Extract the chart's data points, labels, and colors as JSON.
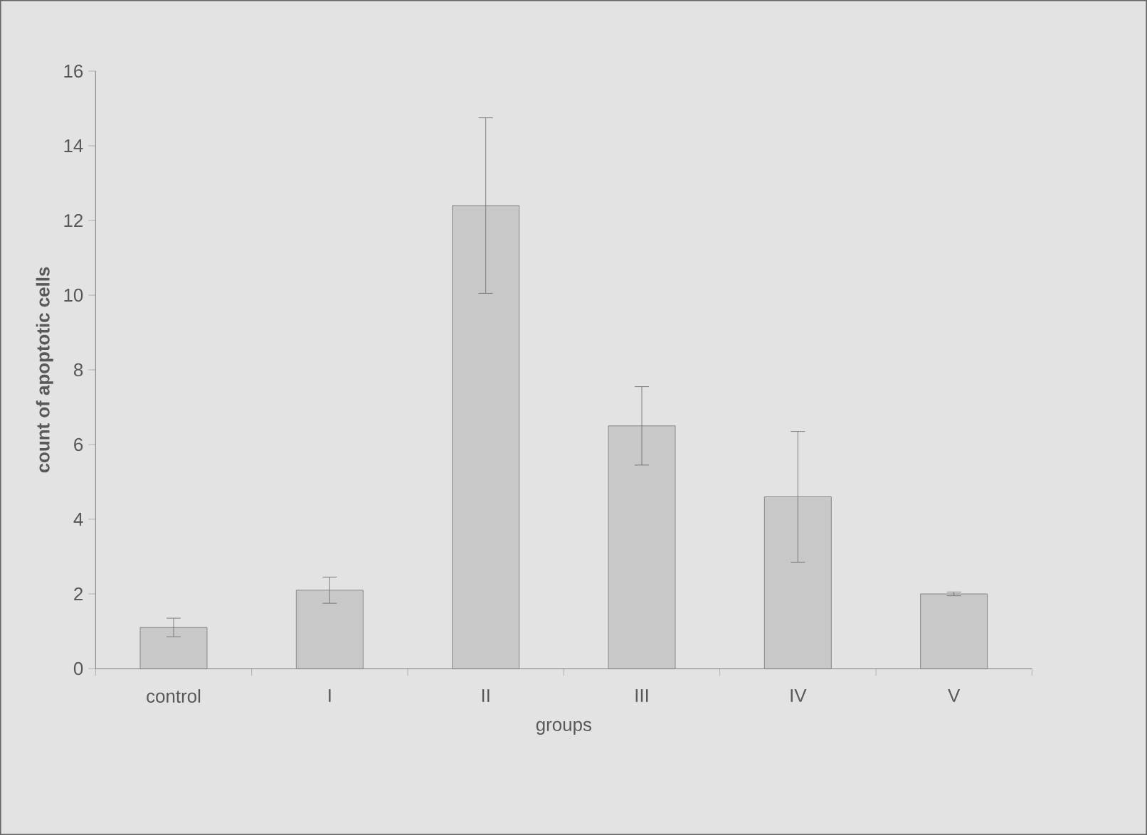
{
  "chart_data": {
    "type": "bar",
    "xlabel": "groups",
    "ylabel": "count of apoptotic cells",
    "categories": [
      "control",
      "I",
      "II",
      "III",
      "IV",
      "V"
    ],
    "values": [
      1.1,
      2.1,
      12.4,
      6.5,
      4.6,
      2.0
    ],
    "errors": [
      0.25,
      0.35,
      2.35,
      1.05,
      1.75,
      0.05
    ],
    "color": "#c8c8c8",
    "ylim": [
      0,
      16
    ],
    "yticks": [
      0,
      2,
      4,
      6,
      8,
      10,
      12,
      14,
      16
    ],
    "grid": false
  }
}
